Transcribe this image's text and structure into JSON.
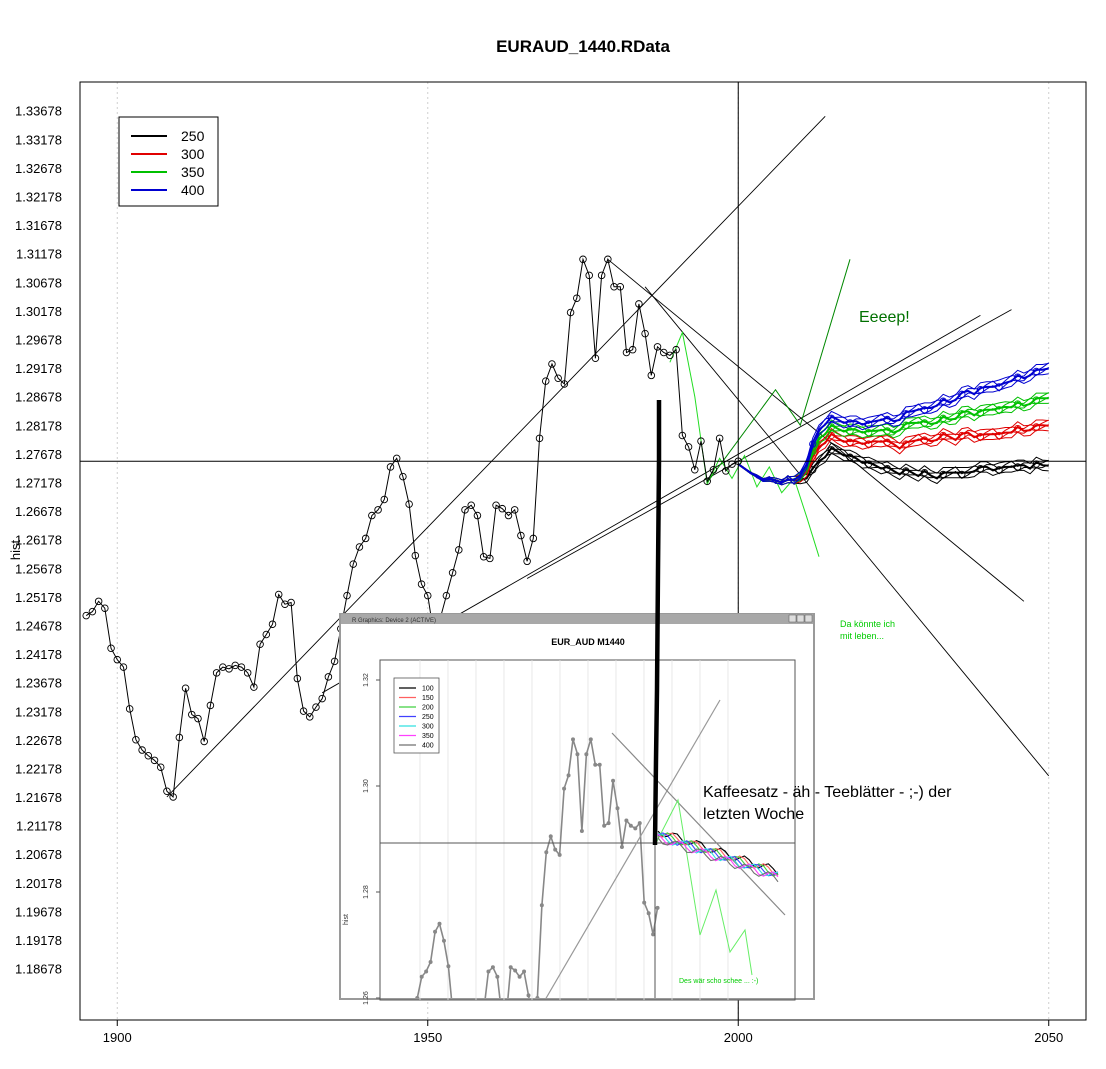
{
  "chart_data": [
    {
      "type": "line",
      "title": "EURAUD_1440.RData",
      "ylabel": "hist",
      "xlim": [
        1894,
        2056
      ],
      "ylim": [
        1.1778,
        1.3418
      ],
      "x_ticks": [
        "1900",
        "1950",
        "2000",
        "2050"
      ],
      "y_ticks": [
        "1.33678",
        "1.33178",
        "1.32678",
        "1.32178",
        "1.31678",
        "1.31178",
        "1.30678",
        "1.30178",
        "1.29678",
        "1.29178",
        "1.28678",
        "1.28178",
        "1.27678",
        "1.27178",
        "1.26678",
        "1.26178",
        "1.25678",
        "1.25178",
        "1.24678",
        "1.24178",
        "1.23678",
        "1.23178",
        "1.22678",
        "1.22178",
        "1.21678",
        "1.21178",
        "1.20678",
        "1.20178",
        "1.19678",
        "1.19178",
        "1.18678"
      ],
      "grid": "vertical dotted",
      "legend_position": "top-left",
      "legend": [
        {
          "label": "250",
          "color": "#000000"
        },
        {
          "label": "300",
          "color": "#e00000"
        },
        {
          "label": "350",
          "color": "#00c000"
        },
        {
          "label": "400",
          "color": "#0000d0"
        }
      ],
      "hist_x": [
        1895,
        1896,
        1897,
        1898,
        1899,
        1900,
        1901,
        1902,
        1903,
        1904,
        1905,
        1906,
        1907,
        1908,
        1909,
        1910,
        1911,
        1912,
        1913,
        1914,
        1915,
        1916,
        1917,
        1918,
        1919,
        1920,
        1921,
        1922,
        1923,
        1924,
        1925,
        1926,
        1927,
        1928,
        1929,
        1930,
        1931,
        1932,
        1933,
        1934,
        1935,
        1936,
        1937,
        1938,
        1939,
        1940,
        1941,
        1942,
        1943,
        1944,
        1945,
        1946,
        1947,
        1948,
        1949,
        1950,
        1951,
        1952,
        1953,
        1954,
        1955,
        1956,
        1957,
        1958,
        1959,
        1960,
        1961,
        1962,
        1963,
        1964,
        1965,
        1966,
        1967,
        1968,
        1969,
        1970,
        1971,
        1972,
        1973,
        1974,
        1975,
        1976,
        1977,
        1978,
        1979,
        1980,
        1981,
        1982,
        1983,
        1984,
        1985,
        1986,
        1987,
        1988,
        1989,
        1990,
        1991,
        1992,
        1993,
        1994,
        1995,
        1996,
        1997,
        1998,
        1999,
        2000
      ],
      "hist_y": [
        1.2485,
        1.2492,
        1.251,
        1.2498,
        1.2428,
        1.2408,
        1.2395,
        1.2322,
        1.2268,
        1.225,
        1.224,
        1.2232,
        1.222,
        1.2178,
        1.2168,
        1.2272,
        1.2358,
        1.2312,
        1.2305,
        1.2265,
        1.2328,
        1.2385,
        1.2395,
        1.2392,
        1.2398,
        1.2395,
        1.2385,
        1.236,
        1.2435,
        1.2452,
        1.247,
        1.2522,
        1.2505,
        1.2508,
        1.2375,
        1.2318,
        1.2308,
        1.2325,
        1.234,
        1.2378,
        1.2405,
        1.2462,
        1.252,
        1.2575,
        1.2605,
        1.262,
        1.266,
        1.267,
        1.2688,
        1.2745,
        1.276,
        1.2728,
        1.268,
        1.259,
        1.254,
        1.252,
        1.245,
        1.248,
        1.252,
        1.256,
        1.26,
        1.267,
        1.2678,
        1.266,
        1.2588,
        1.2585,
        1.2678,
        1.2672,
        1.266,
        1.267,
        1.2625,
        1.258,
        1.262,
        1.2795,
        1.2895,
        1.2925,
        1.29,
        1.289,
        1.3015,
        1.304,
        1.3108,
        1.308,
        1.2935,
        1.308,
        1.3108,
        1.306,
        1.306,
        1.2945,
        1.295,
        1.303,
        1.2978,
        1.2905,
        1.2955,
        1.2945,
        1.294,
        1.295,
        1.28,
        1.278,
        1.274,
        1.279,
        1.272,
        1.274,
        1.2795,
        1.2738,
        1.275,
        1.2755
      ],
      "forecast_x": [
        2000,
        2001,
        2002,
        2003,
        2004,
        2005,
        2006,
        2007,
        2008,
        2009,
        2010,
        2011,
        2012,
        2013,
        2014,
        2015,
        2016,
        2017,
        2018,
        2019,
        2020,
        2021,
        2022,
        2023,
        2024,
        2025,
        2026,
        2027,
        2028,
        2029,
        2030,
        2031,
        2032,
        2033,
        2034,
        2035,
        2036,
        2037,
        2038,
        2039,
        2040,
        2041,
        2042,
        2043,
        2044,
        2045,
        2046,
        2047,
        2048,
        2049,
        2050
      ],
      "series": [
        {
          "name": "250",
          "color": "#000000",
          "values": [
            1.275,
            1.2742,
            1.2735,
            1.2728,
            1.2722,
            1.2725,
            1.272,
            1.2718,
            1.2725,
            1.272,
            1.2722,
            1.2728,
            1.274,
            1.2755,
            1.2765,
            1.2775,
            1.2772,
            1.2768,
            1.2762,
            1.276,
            1.2755,
            1.275,
            1.2748,
            1.2745,
            1.2742,
            1.2738,
            1.2735,
            1.2738,
            1.2735,
            1.2732,
            1.2735,
            1.273,
            1.2728,
            1.2732,
            1.2735,
            1.2738,
            1.2732,
            1.2735,
            1.274,
            1.2742,
            1.2745,
            1.2742,
            1.274,
            1.2745,
            1.2748,
            1.2745,
            1.2748,
            1.2745,
            1.275,
            1.2748,
            1.275
          ]
        },
        {
          "name": "300",
          "color": "#e00000",
          "values": [
            1.275,
            1.2742,
            1.2735,
            1.2728,
            1.2722,
            1.2725,
            1.272,
            1.2718,
            1.2725,
            1.272,
            1.2725,
            1.2738,
            1.276,
            1.278,
            1.279,
            1.28,
            1.2795,
            1.2792,
            1.2788,
            1.279,
            1.2788,
            1.2785,
            1.279,
            1.2792,
            1.2788,
            1.2785,
            1.278,
            1.2785,
            1.279,
            1.2795,
            1.2792,
            1.279,
            1.2795,
            1.28,
            1.2798,
            1.2795,
            1.28,
            1.2805,
            1.28,
            1.2798,
            1.2802,
            1.2805,
            1.28,
            1.2805,
            1.2808,
            1.2812,
            1.2808,
            1.2812,
            1.2815,
            1.2818,
            1.282
          ]
        },
        {
          "name": "350",
          "color": "#00c000",
          "values": [
            1.275,
            1.2742,
            1.2735,
            1.2728,
            1.2722,
            1.2725,
            1.272,
            1.2718,
            1.2725,
            1.272,
            1.2728,
            1.2745,
            1.2772,
            1.2795,
            1.2805,
            1.2815,
            1.2812,
            1.281,
            1.2808,
            1.281,
            1.2808,
            1.2805,
            1.2808,
            1.2812,
            1.2808,
            1.2805,
            1.2812,
            1.2818,
            1.2822,
            1.2825,
            1.2822,
            1.282,
            1.2825,
            1.283,
            1.2828,
            1.2832,
            1.2838,
            1.2842,
            1.2838,
            1.284,
            1.2845,
            1.2848,
            1.2845,
            1.285,
            1.2852,
            1.2855,
            1.2852,
            1.2858,
            1.2862,
            1.2865,
            1.2868
          ]
        },
        {
          "name": "400",
          "color": "#0000d0",
          "values": [
            1.275,
            1.2742,
            1.2735,
            1.2728,
            1.2722,
            1.2725,
            1.272,
            1.2718,
            1.2725,
            1.272,
            1.273,
            1.2752,
            1.2785,
            1.281,
            1.2822,
            1.283,
            1.2828,
            1.2825,
            1.2822,
            1.2825,
            1.2822,
            1.282,
            1.2825,
            1.283,
            1.2828,
            1.2825,
            1.283,
            1.2838,
            1.2842,
            1.2848,
            1.2845,
            1.2848,
            1.2855,
            1.286,
            1.2858,
            1.2865,
            1.2872,
            1.2878,
            1.2875,
            1.288,
            1.2885,
            1.2888,
            1.2885,
            1.2892,
            1.2898,
            1.2902,
            1.29,
            1.2908,
            1.2912,
            1.2915,
            1.292
          ]
        }
      ],
      "green_zigzag": {
        "x": [
          1989,
          1991,
          1993,
          1995,
          1997,
          1999,
          2001,
          2003,
          2005,
          2007,
          2009,
          2011,
          2013
        ],
        "y": [
          1.2928,
          1.298,
          1.2868,
          1.2715,
          1.276,
          1.2725,
          1.2765,
          1.271,
          1.2745,
          1.27,
          1.2725,
          1.2658,
          1.2588
        ]
      },
      "green_upline": {
        "x": [
          1995,
          2006,
          2010,
          2018
        ],
        "y": [
          1.2718,
          1.288,
          1.2818,
          1.3108
        ]
      },
      "trend_lines": [
        {
          "x": [
            1908,
            2014
          ],
          "y": [
            1.2168,
            1.3358
          ]
        },
        {
          "x": [
            1933,
            2039
          ],
          "y": [
            1.235,
            1.301
          ]
        },
        {
          "x": [
            1966,
            2044
          ],
          "y": [
            1.255,
            1.302
          ]
        },
        {
          "x": [
            1979,
            2046
          ],
          "y": [
            1.3108,
            1.251
          ]
        },
        {
          "x": [
            1985,
            2050
          ],
          "y": [
            1.306,
            1.2205
          ]
        }
      ],
      "crosshair": {
        "x": 2000,
        "y": 1.2755
      },
      "annotations": {
        "eeeep": "Eeeep!",
        "da_koennte": [
          "Da könnte ich",
          "mit leben..."
        ],
        "kaffeesatz": [
          "Kaffeesatz - äh - Teeblätter - ;-) der",
          "letzten Woche"
        ]
      }
    },
    {
      "type": "line",
      "window_title": "R Graphics: Device 2 (ACTIVE)",
      "title": "EUR_AUD M1440",
      "ylabel": "hist",
      "y_ticks": [
        "1.32",
        "1.30",
        "1.28",
        "1.26"
      ],
      "legend_position": "top-left",
      "legend": [
        {
          "label": "100",
          "color": "#000000"
        },
        {
          "label": "150",
          "color": "#ff6060"
        },
        {
          "label": "200",
          "color": "#40d040"
        },
        {
          "label": "250",
          "color": "#4040ff"
        },
        {
          "label": "300",
          "color": "#30e0e0"
        },
        {
          "label": "350",
          "color": "#ff40ff"
        },
        {
          "label": "400",
          "color": "#707070"
        }
      ],
      "note": "Des wär scho schee ... :-)"
    }
  ]
}
